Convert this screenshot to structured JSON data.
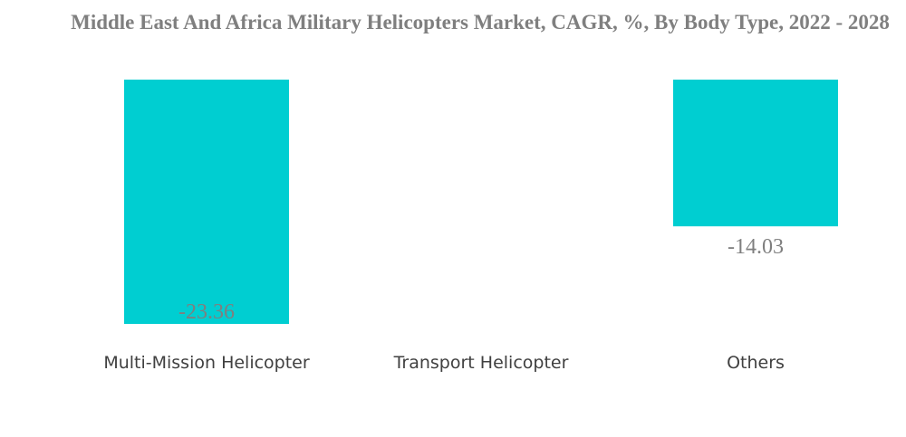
{
  "chart_data": {
    "type": "bar",
    "title": "Middle East And Africa Military Helicopters Market, CAGR, %, By Body Type, 2022 - 2028",
    "categories": [
      "Multi-Mission Helicopter",
      "Transport Helicopter",
      "Others"
    ],
    "values": [
      -23.36,
      null,
      -14.03
    ],
    "data_labels": [
      "-23.36",
      "",
      "-14.03"
    ],
    "xlabel": "",
    "ylabel": "",
    "ylim": [
      -23.36,
      0
    ],
    "grid": false,
    "legend": "none",
    "bar_color": "#00ced1",
    "label_color": "#7f7f7f",
    "category_color": "#404040",
    "title_color": "#7f7f7f"
  }
}
